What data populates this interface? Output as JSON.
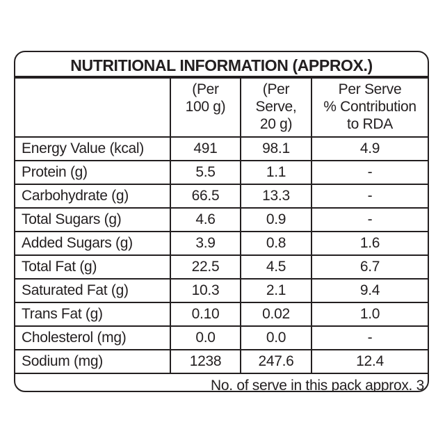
{
  "label": {
    "title": "NUTRITIONAL INFORMATION (APPROX.)",
    "columns": [
      {
        "lines": [
          ""
        ]
      },
      {
        "lines": [
          "(Per",
          "100 g)"
        ]
      },
      {
        "lines": [
          "(Per",
          "Serve,",
          "20 g)"
        ]
      },
      {
        "lines": [
          "Per Serve",
          "% Contribution",
          "to RDA"
        ]
      }
    ],
    "rows": [
      {
        "name": "Energy Value (kcal)",
        "per_100g": "491",
        "per_serve": "98.1",
        "rda": "4.9"
      },
      {
        "name": "Protein (g)",
        "per_100g": "5.5",
        "per_serve": "1.1",
        "rda": "-"
      },
      {
        "name": "Carbohydrate (g)",
        "per_100g": "66.5",
        "per_serve": "13.3",
        "rda": "-"
      },
      {
        "name": "Total Sugars (g)",
        "per_100g": "4.6",
        "per_serve": "0.9",
        "rda": "-"
      },
      {
        "name": "Added Sugars (g)",
        "per_100g": "3.9",
        "per_serve": "0.8",
        "rda": "1.6"
      },
      {
        "name": "Total Fat (g)",
        "per_100g": "22.5",
        "per_serve": "4.5",
        "rda": "6.7"
      },
      {
        "name": "Saturated Fat (g)",
        "per_100g": "10.3",
        "per_serve": "2.1",
        "rda": "9.4"
      },
      {
        "name": "Trans Fat (g)",
        "per_100g": "0.10",
        "per_serve": "0.02",
        "rda": "1.0"
      },
      {
        "name": "Cholesterol (mg)",
        "per_100g": "0.0",
        "per_serve": "0.0",
        "rda": "-"
      },
      {
        "name": "Sodium (mg)",
        "per_100g": "1238",
        "per_serve": "247.6",
        "rda": "12.4"
      }
    ],
    "footer": "No. of serve in this pack approx. 3",
    "colors": {
      "ink": "#231f20",
      "background": "#ffffff"
    }
  }
}
